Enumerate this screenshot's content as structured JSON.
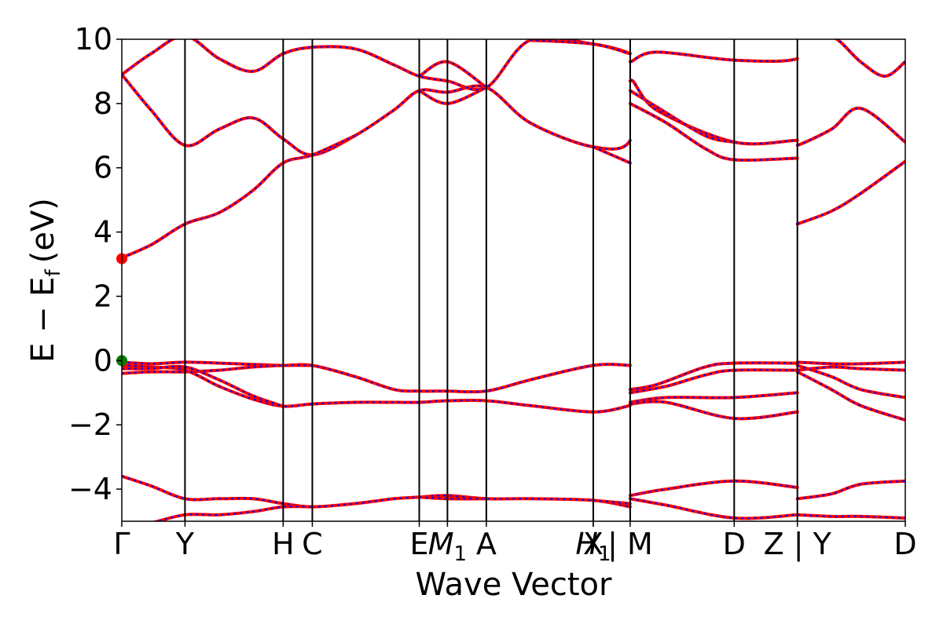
{
  "chart_data": {
    "type": "line",
    "xlabel": "Wave Vector",
    "ylabel": "E − E",
    "ylabel_subscript": "f",
    "ylabel_unit": "(eV)",
    "ylim": [
      -5,
      10
    ],
    "yticks": [
      -4,
      -2,
      0,
      2,
      4,
      6,
      8,
      10
    ],
    "ytick_labels": [
      "−4",
      "−2",
      "0",
      "2",
      "4",
      "6",
      "8",
      "10"
    ],
    "xlim": [
      0,
      9.8
    ],
    "grid": false,
    "legend": "none",
    "kpoints": [
      {
        "x": 0.0,
        "label": "Γ",
        "sub": ""
      },
      {
        "x": 0.65,
        "label": "Y",
        "sub": ""
      },
      {
        "x": 1.66,
        "label": "H",
        "sub": ""
      },
      {
        "x": 1.96,
        "label": "C",
        "sub": ""
      },
      {
        "x": 3.06,
        "label": "E",
        "sub": ""
      },
      {
        "x": 3.35,
        "label": "M",
        "sub": "1"
      },
      {
        "x": 3.75,
        "label": "A",
        "sub": ""
      },
      {
        "x": 4.85,
        "label": "X",
        "sub": ""
      },
      {
        "x": 4.85,
        "label": "H",
        "sub": "1"
      },
      {
        "x": 5.23,
        "label": "| M",
        "sub": ""
      },
      {
        "x": 6.3,
        "label": "D",
        "sub": ""
      },
      {
        "x": 6.95,
        "label": "Z | Y",
        "sub": ""
      },
      {
        "x": 8.06,
        "label": "D",
        "sub": ""
      }
    ],
    "segment_breaks_x": [
      5.23,
      6.95
    ],
    "colors": {
      "spin_up": "#ff0000",
      "spin_down": "#0000ff",
      "vbm_marker": "#008000",
      "cbm_marker": "#ff0000"
    },
    "markers": [
      {
        "name": "vbm",
        "x": 0.0,
        "y": 0.0
      },
      {
        "name": "cbm",
        "x": 0.0,
        "y": 3.17
      }
    ],
    "bands": [
      [
        [
          0,
          8.9
        ],
        [
          0.3,
          9.55
        ],
        [
          0.65,
          10.1
        ],
        [
          1.0,
          9.4
        ],
        [
          1.35,
          9.0
        ],
        [
          1.66,
          9.55
        ],
        [
          1.96,
          9.75
        ],
        [
          2.4,
          9.7
        ],
        [
          2.8,
          9.2
        ],
        [
          3.06,
          8.85
        ],
        [
          3.35,
          8.7
        ],
        [
          3.75,
          8.5
        ],
        [
          4.2,
          9.97
        ],
        [
          4.85,
          9.85
        ],
        [
          5.23,
          9.55
        ],
        [
          5.23,
          9.3
        ],
        [
          5.5,
          9.6
        ],
        [
          6.3,
          9.35
        ],
        [
          6.95,
          9.4
        ],
        [
          6.95,
          10.1
        ],
        [
          7.3,
          10.1
        ],
        [
          7.6,
          9.3
        ],
        [
          7.85,
          8.85
        ],
        [
          8.06,
          9.3
        ],
        [
          8.06,
          9.3
        ]
      ],
      [
        [
          0,
          8.9
        ],
        [
          0.3,
          7.8
        ],
        [
          0.65,
          6.7
        ],
        [
          1.0,
          7.2
        ],
        [
          1.35,
          7.55
        ],
        [
          1.66,
          6.9
        ],
        [
          1.96,
          6.4
        ],
        [
          2.4,
          7.0
        ],
        [
          2.8,
          7.8
        ],
        [
          3.06,
          8.4
        ],
        [
          3.35,
          8.35
        ],
        [
          3.75,
          8.5
        ],
        [
          4.2,
          7.4
        ],
        [
          4.85,
          6.65
        ],
        [
          5.23,
          6.85
        ],
        [
          5.23,
          8.7
        ],
        [
          5.5,
          7.8
        ],
        [
          6.3,
          6.8
        ],
        [
          6.95,
          6.85
        ],
        [
          6.95,
          6.7
        ],
        [
          7.3,
          7.2
        ],
        [
          7.6,
          7.85
        ],
        [
          8.06,
          6.8
        ]
      ],
      [
        [
          3.06,
          8.85
        ],
        [
          3.35,
          9.3
        ],
        [
          3.75,
          8.5
        ]
      ],
      [
        [
          3.06,
          8.4
        ],
        [
          3.35,
          8.0
        ],
        [
          3.75,
          8.5
        ]
      ],
      [
        [
          4.2,
          9.97
        ],
        [
          4.85,
          9.85
        ],
        [
          5.23,
          9.55
        ]
      ],
      [
        [
          4.85,
          6.65
        ],
        [
          5.23,
          6.15
        ]
      ],
      [
        [
          5.23,
          8.4
        ],
        [
          5.5,
          7.9
        ],
        [
          6.0,
          7.0
        ],
        [
          6.3,
          6.8
        ]
      ],
      [
        [
          5.23,
          8.0
        ],
        [
          5.6,
          7.4
        ],
        [
          6.0,
          6.6
        ],
        [
          6.3,
          6.25
        ],
        [
          6.95,
          6.3
        ]
      ],
      [
        [
          0,
          3.2
        ],
        [
          0.3,
          3.6
        ],
        [
          0.65,
          4.25
        ],
        [
          1.0,
          4.6
        ],
        [
          1.35,
          5.3
        ],
        [
          1.66,
          6.15
        ],
        [
          1.96,
          6.4
        ],
        [
          2.4,
          7.0
        ]
      ],
      [
        [
          6.95,
          4.25
        ],
        [
          7.3,
          4.65
        ],
        [
          7.6,
          5.2
        ],
        [
          8.06,
          6.2
        ]
      ],
      [
        [
          0,
          -0.05
        ],
        [
          0.3,
          -0.1
        ],
        [
          0.65,
          -0.05
        ],
        [
          1.0,
          -0.08
        ],
        [
          1.35,
          -0.12
        ],
        [
          1.66,
          -0.15
        ],
        [
          1.96,
          -0.15
        ],
        [
          2.4,
          -0.5
        ],
        [
          2.8,
          -0.9
        ],
        [
          3.06,
          -0.95
        ],
        [
          3.35,
          -0.95
        ],
        [
          3.75,
          -0.95
        ],
        [
          4.2,
          -0.6
        ],
        [
          4.85,
          -0.15
        ],
        [
          5.23,
          -0.15
        ]
      ],
      [
        [
          0,
          -0.4
        ],
        [
          0.3,
          -0.35
        ],
        [
          0.65,
          -0.35
        ],
        [
          1.0,
          -0.3
        ],
        [
          1.35,
          -0.2
        ],
        [
          1.66,
          -0.15
        ],
        [
          1.96,
          -0.15
        ]
      ],
      [
        [
          0,
          -0.15
        ],
        [
          0.3,
          -0.2
        ],
        [
          0.65,
          -0.3
        ],
        [
          1.0,
          -0.8
        ],
        [
          1.35,
          -1.2
        ],
        [
          1.66,
          -1.42
        ],
        [
          1.96,
          -1.35
        ],
        [
          2.4,
          -1.3
        ],
        [
          2.8,
          -1.3
        ],
        [
          3.06,
          -1.3
        ],
        [
          3.35,
          -1.25
        ],
        [
          3.75,
          -1.25
        ],
        [
          4.2,
          -1.4
        ],
        [
          4.85,
          -1.6
        ],
        [
          5.23,
          -1.4
        ]
      ],
      [
        [
          0,
          -0.25
        ],
        [
          0.3,
          -0.25
        ],
        [
          0.65,
          -0.2
        ],
        [
          1.0,
          -0.6
        ],
        [
          1.35,
          -1.1
        ],
        [
          1.66,
          -1.42
        ]
      ],
      [
        [
          5.23,
          -0.9
        ],
        [
          5.5,
          -0.75
        ],
        [
          6.0,
          -0.2
        ],
        [
          6.3,
          -0.08
        ],
        [
          6.95,
          -0.08
        ]
      ],
      [
        [
          5.23,
          -1.0
        ],
        [
          5.6,
          -0.8
        ],
        [
          6.0,
          -0.45
        ],
        [
          6.3,
          -0.3
        ],
        [
          6.95,
          -0.3
        ]
      ],
      [
        [
          5.23,
          -1.3
        ],
        [
          5.6,
          -1.15
        ],
        [
          6.3,
          -1.15
        ],
        [
          6.95,
          -1.0
        ]
      ],
      [
        [
          5.23,
          -1.35
        ],
        [
          5.6,
          -1.3
        ],
        [
          6.3,
          -1.8
        ],
        [
          6.95,
          -1.6
        ]
      ],
      [
        [
          6.95,
          -0.05
        ],
        [
          7.3,
          -0.1
        ],
        [
          7.6,
          -0.1
        ],
        [
          8.06,
          -0.05
        ]
      ],
      [
        [
          6.95,
          -0.3
        ],
        [
          7.3,
          -0.2
        ],
        [
          7.6,
          -0.25
        ],
        [
          8.06,
          -0.3
        ]
      ],
      [
        [
          6.95,
          -0.15
        ],
        [
          7.3,
          -0.5
        ],
        [
          7.6,
          -0.9
        ],
        [
          8.06,
          -1.15
        ]
      ],
      [
        [
          6.95,
          -0.35
        ],
        [
          7.3,
          -0.9
        ],
        [
          7.6,
          -1.4
        ],
        [
          8.06,
          -1.85
        ]
      ],
      [
        [
          0,
          -3.6
        ],
        [
          0.3,
          -3.9
        ],
        [
          0.65,
          -4.3
        ],
        [
          1.0,
          -4.3
        ],
        [
          1.35,
          -4.3
        ],
        [
          1.66,
          -4.45
        ],
        [
          1.96,
          -4.55
        ],
        [
          2.4,
          -4.45
        ],
        [
          2.8,
          -4.3
        ],
        [
          3.06,
          -4.25
        ],
        [
          3.35,
          -4.2
        ],
        [
          3.75,
          -4.3
        ],
        [
          4.2,
          -4.3
        ],
        [
          4.85,
          -4.35
        ],
        [
          5.23,
          -4.55
        ]
      ],
      [
        [
          0,
          -5.2
        ],
        [
          0.3,
          -5.05
        ],
        [
          0.65,
          -4.8
        ],
        [
          1.0,
          -4.8
        ],
        [
          1.35,
          -4.7
        ],
        [
          1.66,
          -4.55
        ],
        [
          1.96,
          -4.55
        ]
      ],
      [
        [
          3.06,
          -4.25
        ],
        [
          3.35,
          -4.3
        ],
        [
          3.75,
          -4.3
        ]
      ],
      [
        [
          4.85,
          -4.35
        ],
        [
          5.23,
          -4.45
        ]
      ],
      [
        [
          5.23,
          -4.2
        ],
        [
          5.6,
          -4.0
        ],
        [
          6.3,
          -3.75
        ],
        [
          6.95,
          -3.95
        ]
      ],
      [
        [
          5.23,
          -4.3
        ],
        [
          5.6,
          -4.5
        ],
        [
          6.3,
          -4.9
        ],
        [
          6.95,
          -4.8
        ]
      ],
      [
        [
          6.95,
          -4.3
        ],
        [
          7.3,
          -4.15
        ],
        [
          7.6,
          -3.85
        ],
        [
          8.06,
          -3.75
        ]
      ],
      [
        [
          6.95,
          -4.8
        ],
        [
          7.3,
          -4.85
        ],
        [
          7.6,
          -4.85
        ],
        [
          8.06,
          -4.9
        ]
      ]
    ]
  }
}
